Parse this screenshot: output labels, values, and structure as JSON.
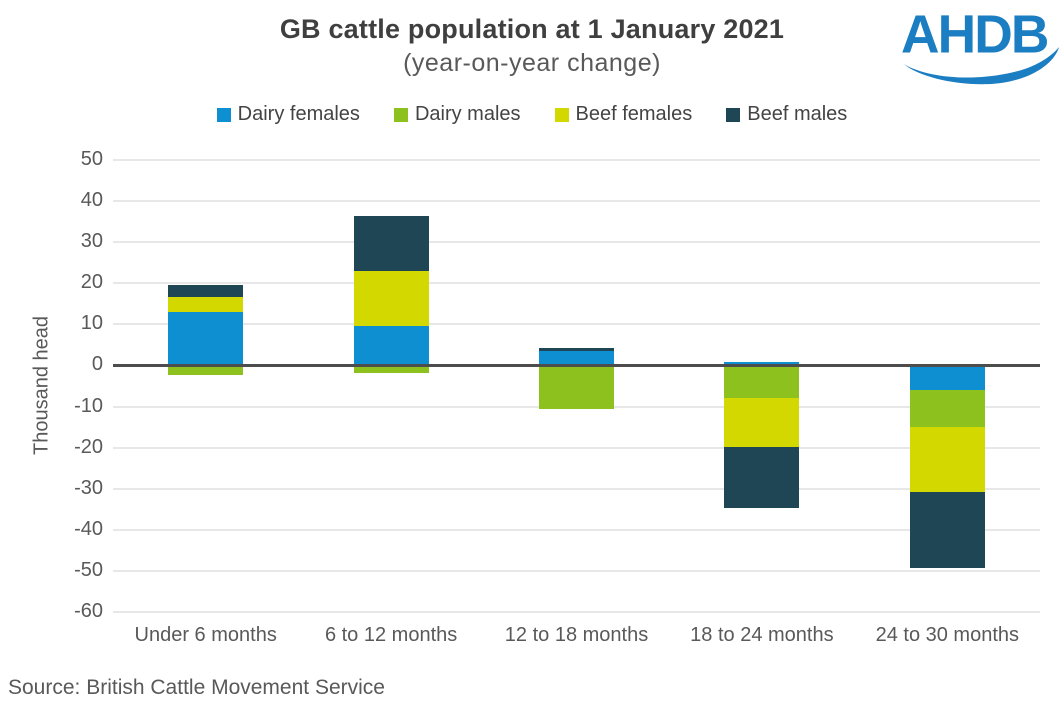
{
  "header": {
    "title": "GB cattle population at 1 January 2021",
    "subtitle": "(year-on-year change)"
  },
  "logo": {
    "text": "AHDB",
    "color": "#1b7dc2"
  },
  "source": {
    "text": "Source: British Cattle Movement Service"
  },
  "colors": {
    "gridline": "#e7e7e7",
    "zero_line": "#4d4d4d",
    "title_text": "#3f3f3f",
    "axis_text": "#595959"
  },
  "chart_data": {
    "type": "bar",
    "stacked": true,
    "title": "GB cattle population at 1 January 2021",
    "subtitle": "(year-on-year change)",
    "xlabel": "",
    "ylabel": "Thousand head",
    "unit": "thousand head (year-on-year change)",
    "grid": true,
    "legend_position": "top",
    "ylim": [
      -60,
      50
    ],
    "y_ticks": [
      50,
      40,
      30,
      20,
      10,
      0,
      -10,
      -20,
      -30,
      -40,
      -50,
      -60
    ],
    "categories": [
      "Under 6 months",
      "6 to 12 months",
      "12 to 18 months",
      "18 to 24 months",
      "24 to 30 months"
    ],
    "series": [
      {
        "name": "Dairy females",
        "color": "#0e8fd1",
        "values": [
          13.0,
          9.6,
          3.4,
          0.8,
          -5.9
        ]
      },
      {
        "name": "Dairy males",
        "color": "#8dc21e",
        "values": [
          -2.4,
          -1.9,
          -10.6,
          -7.9,
          -9.0
        ]
      },
      {
        "name": "Beef females",
        "color": "#d3d800",
        "values": [
          3.7,
          13.5,
          0.0,
          -11.9,
          -16.0
        ]
      },
      {
        "name": "Beef males",
        "color": "#1e4654",
        "values": [
          2.9,
          13.3,
          0.8,
          -15.0,
          -18.4
        ]
      }
    ]
  }
}
